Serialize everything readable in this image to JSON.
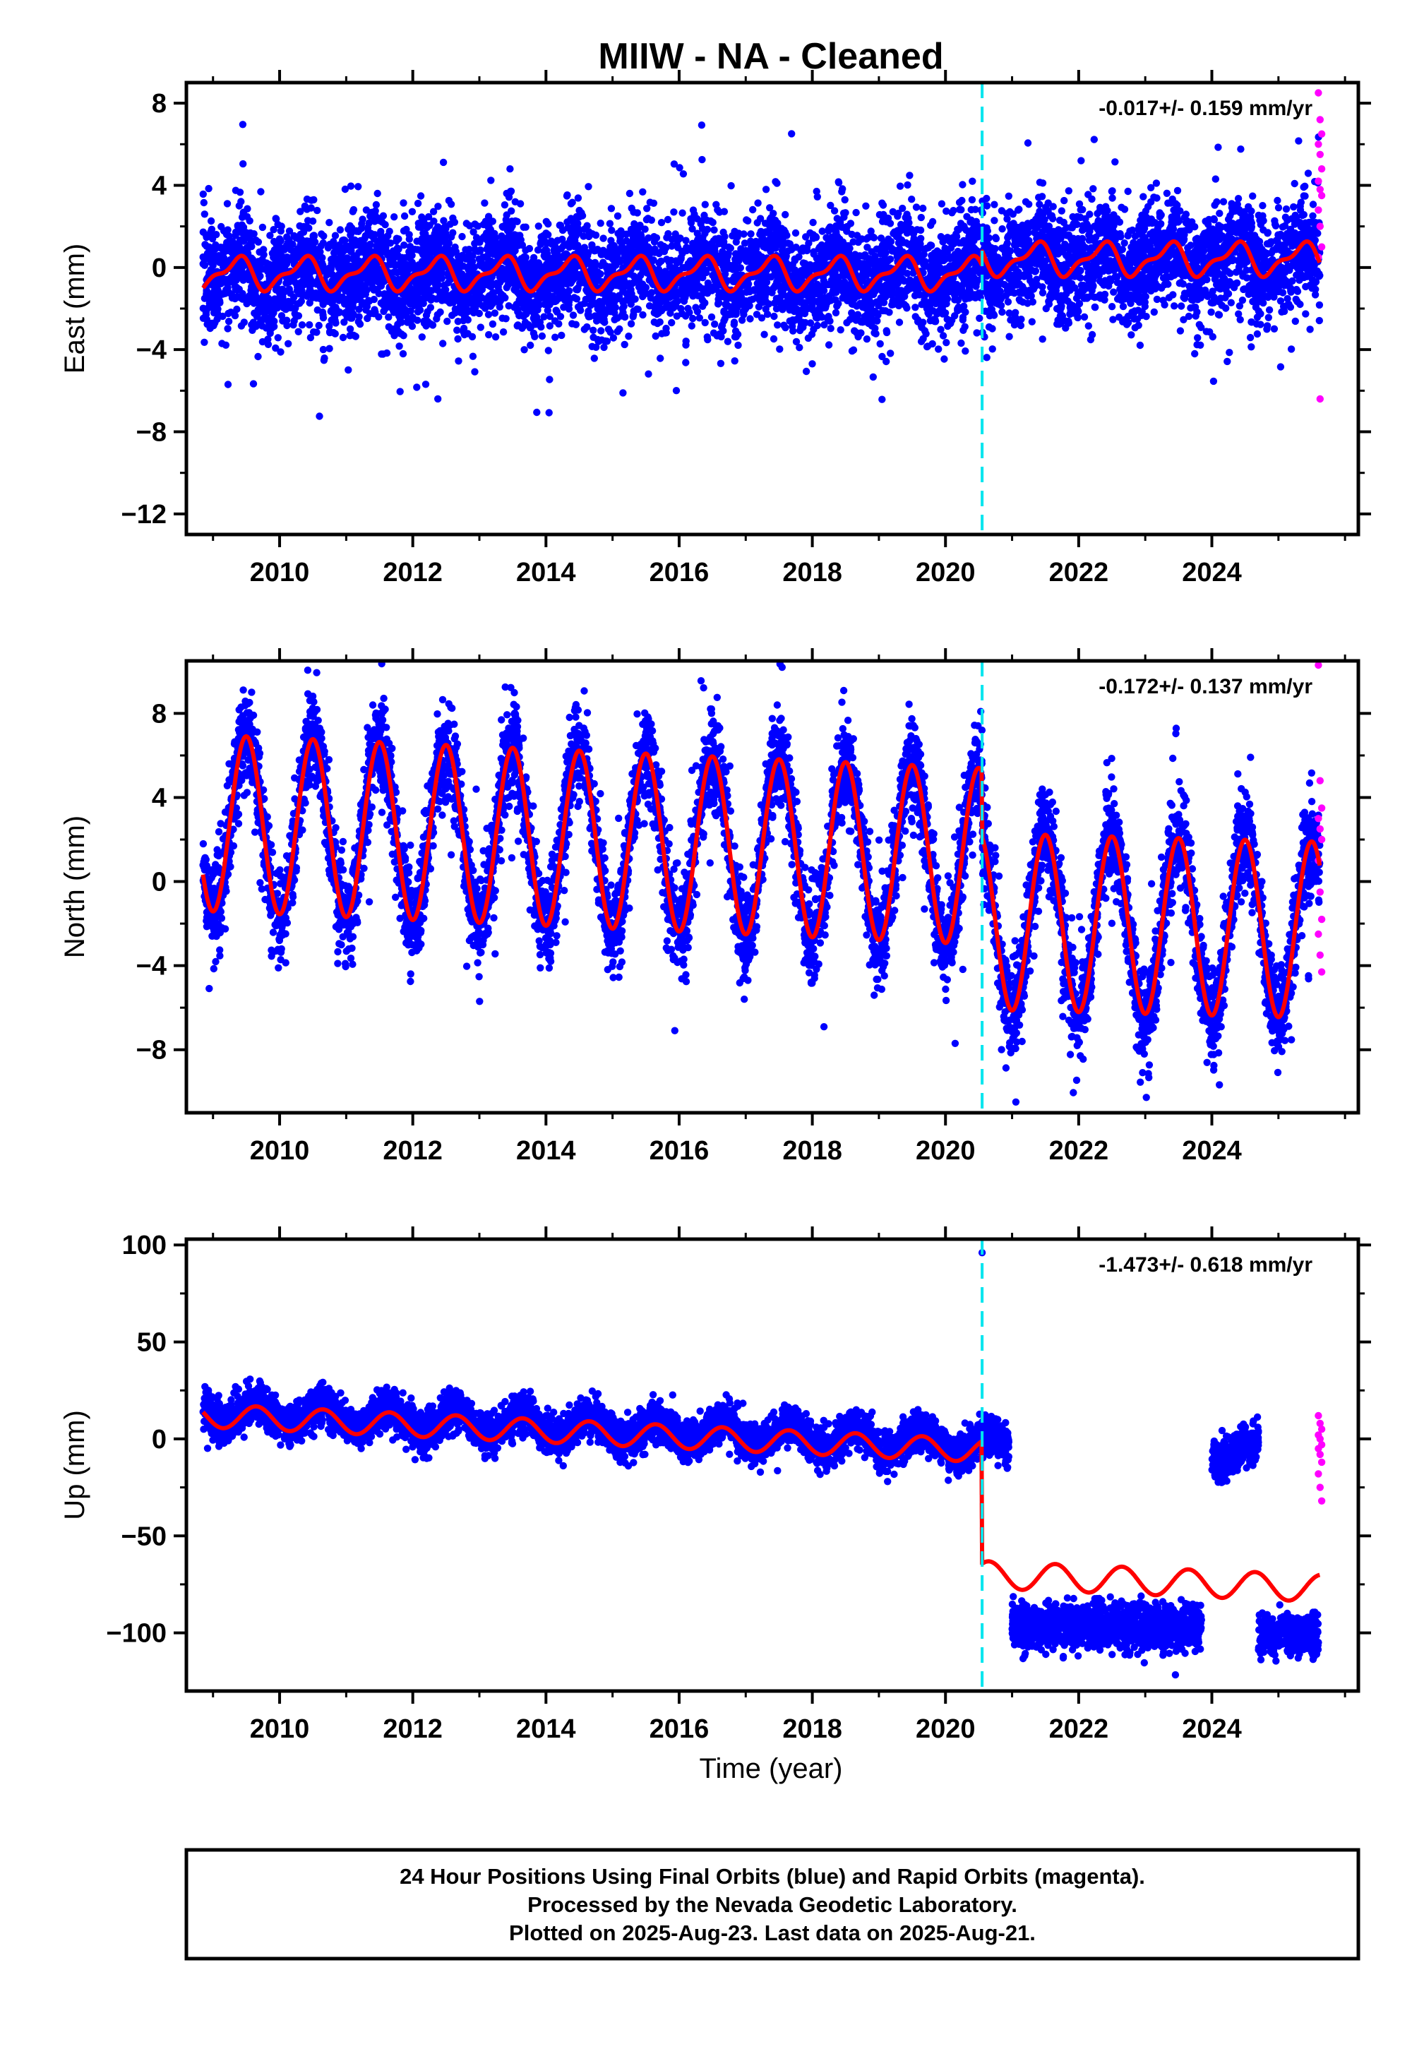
{
  "title": "MIIW  - NA - Cleaned",
  "xlabel": "Time (year)",
  "colors": {
    "final_orbits": "#0000ff",
    "rapid_orbits": "#ff00ff",
    "model": "#ff0000",
    "event_line": "#00e5ee",
    "axes": "#000000"
  },
  "footer": {
    "line1": "24 Hour Positions Using Final Orbits (blue) and Rapid Orbits (magenta).",
    "line2": "Processed by the Nevada Geodetic Laboratory.",
    "line3": "Plotted on 2025-Aug-23. Last data on 2025-Aug-21."
  },
  "chart_data": [
    {
      "type": "scatter",
      "panel": "east",
      "ylabel": "East (mm)",
      "rate_label": "-0.017+/- 0.159 mm/yr",
      "xlim": [
        2008.6,
        2026.2
      ],
      "ylim": [
        -13.0,
        9.0
      ],
      "yticks": [
        8,
        4,
        0,
        -4,
        -8,
        -12
      ],
      "xticks": [
        2010,
        2012,
        2014,
        2016,
        2018,
        2020,
        2022,
        2024
      ],
      "event_line_x": 2020.55,
      "data_span": [
        2008.85,
        2025.62
      ],
      "series": [
        {
          "name": "Final Orbits (blue)",
          "color": "#0000ff",
          "mean_before": -0.3,
          "mean_after": 0.3,
          "annual_amp": 0.7,
          "semiannual_amp": 0.3,
          "noise_sd": 1.3
        },
        {
          "name": "Rapid Orbits (magenta)",
          "color": "#ff00ff",
          "x_range": [
            2025.6,
            2025.65
          ],
          "y_values": [
            8.5,
            7.2,
            6.5,
            6.0,
            5.5,
            4.8,
            4.2,
            3.8,
            3.5,
            2.8,
            2.0,
            1.0,
            0.5,
            -6.4
          ]
        }
      ],
      "model": {
        "offset_before": -0.3,
        "offset_after": 0.4,
        "annual_amp": 0.7,
        "semiannual_amp": 0.3
      }
    },
    {
      "type": "scatter",
      "panel": "north",
      "ylabel": "North (mm)",
      "rate_label": "-0.172+/- 0.137 mm/yr",
      "xlim": [
        2008.6,
        2026.2
      ],
      "ylim": [
        -11.0,
        10.5
      ],
      "yticks": [
        8,
        4,
        0,
        -4,
        -8
      ],
      "xticks": [
        2010,
        2012,
        2014,
        2016,
        2018,
        2020,
        2022,
        2024
      ],
      "event_line_x": 2020.55,
      "data_span": [
        2008.85,
        2025.62
      ],
      "series": [
        {
          "name": "Final Orbits (blue)",
          "color": "#0000ff",
          "noise_sd": 1.1
        },
        {
          "name": "Rapid Orbits (magenta)",
          "color": "#ff00ff",
          "x_range": [
            2025.6,
            2025.65
          ],
          "y_values": [
            10.3,
            4.8,
            3.5,
            3.0,
            2.5,
            2.0,
            1.0,
            -0.5,
            -1.8,
            -2.5,
            -3.5,
            -4.3
          ]
        }
      ],
      "model": {
        "before": {
          "center_start": 2.8,
          "center_end": 1.2,
          "amp": 4.2
        },
        "after": {
          "center_start": -1.9,
          "center_end": -2.3,
          "amp": 4.2
        },
        "phase_peak": 0.5
      }
    },
    {
      "type": "scatter",
      "panel": "up",
      "ylabel": "Up (mm)",
      "rate_label": "-1.473+/- 0.618 mm/yr",
      "xlim": [
        2008.6,
        2026.2
      ],
      "ylim": [
        -130,
        103
      ],
      "yticks": [
        100,
        50,
        0,
        -50,
        -100
      ],
      "xticks": [
        2010,
        2012,
        2014,
        2016,
        2018,
        2020,
        2022,
        2024
      ],
      "event_line_x": 2020.55,
      "outlier": {
        "x": 2020.55,
        "y": 96
      },
      "series": [
        {
          "name": "Final Orbits (blue)",
          "color": "#0000ff",
          "segments": [
            {
              "x": [
                2008.85,
                2020.55
              ],
              "mean_start": 14,
              "mean_end": -3,
              "sd": 5
            },
            {
              "x": [
                2020.55,
                2020.95
              ],
              "mean_start": -4,
              "mean_end": -4,
              "sd": 5
            },
            {
              "x": [
                2021.0,
                2023.85
              ],
              "mean_start": -97,
              "mean_end": -97,
              "sd": 6
            },
            {
              "x": [
                2024.0,
                2024.7
              ],
              "mean_start": -6,
              "mean_end": -6,
              "sd": 5
            },
            {
              "x": [
                2024.7,
                2025.6
              ],
              "mean_start": -101,
              "mean_end": -101,
              "sd": 5
            }
          ]
        },
        {
          "name": "Rapid Orbits (magenta)",
          "color": "#ff00ff",
          "x_range": [
            2025.6,
            2025.65
          ],
          "y_values": [
            12,
            8,
            5,
            2,
            0,
            -3,
            -5,
            -8,
            -12,
            -18,
            -25,
            -32
          ]
        }
      ],
      "model": {
        "before": {
          "level_start": 12,
          "level_end": -6,
          "amp": 6
        },
        "after": {
          "level_start": -70,
          "level_end": -77,
          "amp": 7
        }
      }
    }
  ]
}
